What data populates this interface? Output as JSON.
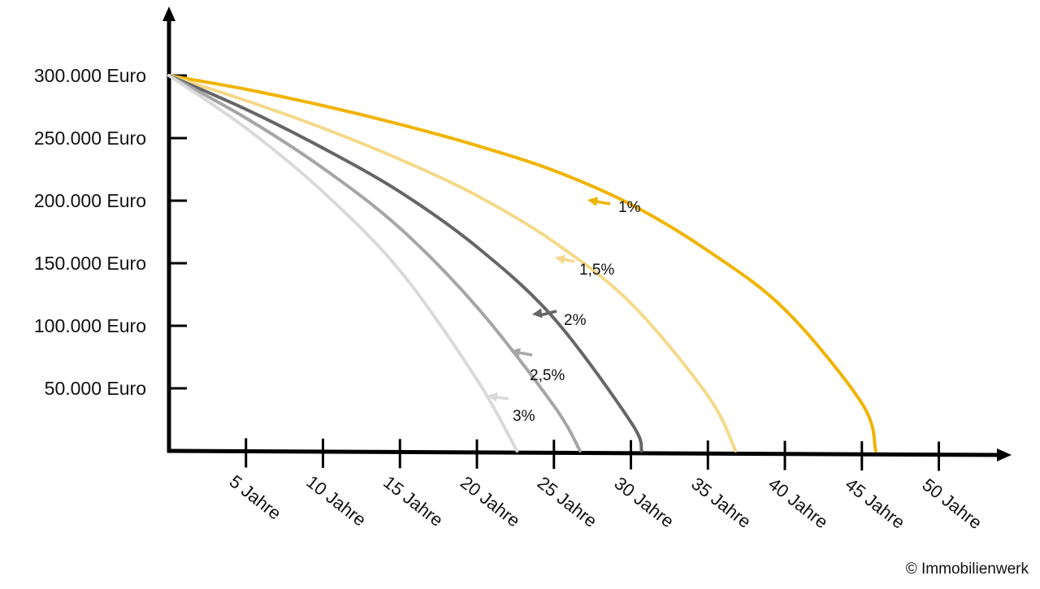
{
  "chart_data": {
    "type": "line",
    "title": "",
    "xlabel": "",
    "ylabel": "",
    "x_tick_labels": [
      "5 Jahre",
      "10 Jahre",
      "15 Jahre",
      "20 Jahre",
      "25 Jahre",
      "30 Jahre",
      "35 Jahre",
      "40 Jahre",
      "45 Jahre",
      "50 Jahre"
    ],
    "x_ticks": [
      5,
      10,
      15,
      20,
      25,
      30,
      35,
      40,
      45,
      50
    ],
    "y_tick_labels": [
      "300.000 Euro",
      "250.000 Euro",
      "200.000 Euro",
      "150.000 Euro",
      "100.000 Euro",
      "50.000 Euro"
    ],
    "y_ticks": [
      300000,
      250000,
      200000,
      150000,
      100000,
      50000
    ],
    "xlim": [
      0,
      55
    ],
    "ylim": [
      0,
      300000
    ],
    "grid": false,
    "legend": "inline labels next to curves",
    "series": [
      {
        "name": "1%",
        "color": "#f0b400",
        "x": [
          0,
          5,
          10,
          15,
          20,
          25,
          30,
          35,
          40,
          45,
          45.9
        ],
        "y": [
          300000,
          289000,
          276000,
          261000,
          244000,
          224000,
          197000,
          160000,
          113000,
          38000,
          0
        ]
      },
      {
        "name": "1,5%",
        "color": "#f5d98a",
        "x": [
          0,
          5,
          10,
          15,
          20,
          25,
          30,
          35,
          36.8
        ],
        "y": [
          300000,
          280000,
          258000,
          233000,
          204000,
          167000,
          118000,
          44000,
          0
        ]
      },
      {
        "name": "2%",
        "color": "#666666",
        "x": [
          0,
          5,
          10,
          15,
          20,
          25,
          30,
          30.7
        ],
        "y": [
          300000,
          273000,
          242000,
          207000,
          163000,
          106000,
          23000,
          0
        ]
      },
      {
        "name": "2,5%",
        "color": "#a6a6a6",
        "x": [
          0,
          5,
          10,
          15,
          20,
          25,
          26.7
        ],
        "y": [
          300000,
          266000,
          226000,
          178000,
          115000,
          36000,
          0
        ]
      },
      {
        "name": "3%",
        "color": "#d9d9d9",
        "x": [
          0,
          5,
          10,
          15,
          20,
          22.6
        ],
        "y": [
          300000,
          258000,
          207000,
          144000,
          57000,
          0
        ]
      }
    ]
  },
  "footer": {
    "copyright": "© Immobilienwerk"
  }
}
